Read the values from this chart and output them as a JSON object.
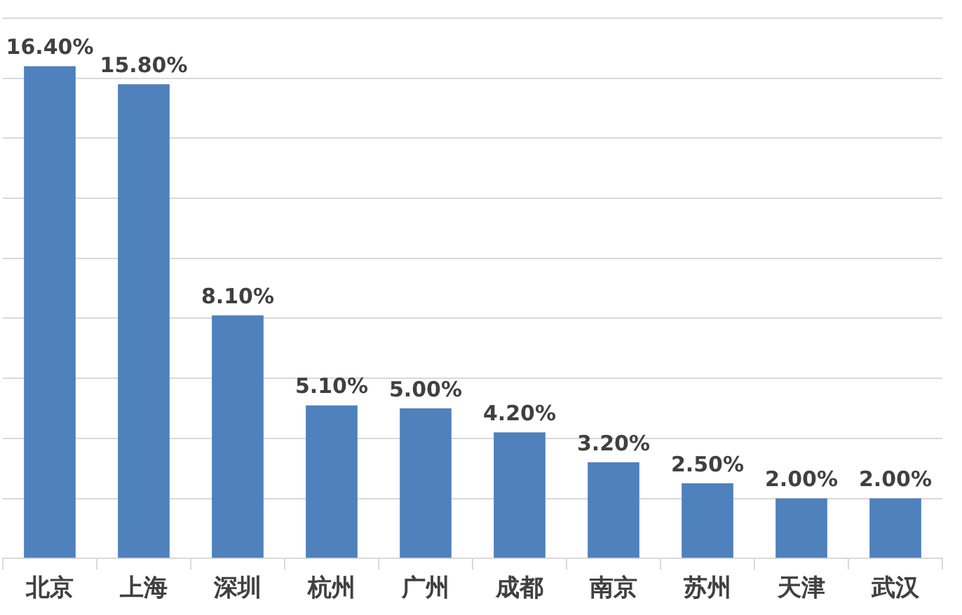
{
  "chart_data": {
    "type": "bar",
    "categories": [
      "北京",
      "上海",
      "深圳",
      "杭州",
      "广州",
      "成都",
      "南京",
      "苏州",
      "天津",
      "武汉"
    ],
    "values": [
      16.4,
      15.8,
      8.1,
      5.1,
      5.0,
      4.2,
      3.2,
      2.5,
      2.0,
      2.0
    ],
    "color": "#4f81bd",
    "value_labels": [
      "16.40%",
      "15.80%",
      "8.10%",
      "5.10%",
      "5.00%",
      "4.20%",
      "3.20%",
      "2.50%",
      "2.00%",
      "2.00%"
    ],
    "ylim": [
      0,
      18
    ],
    "yticks": [
      {
        "value": 0,
        "label": null
      },
      {
        "value": 2,
        "label": null
      },
      {
        "value": 4,
        "label": null
      },
      {
        "value": 6,
        "label": null
      },
      {
        "value": 8,
        "label": null
      },
      {
        "value": 10,
        "label": null
      },
      {
        "value": 12,
        "label": null
      },
      {
        "value": 14,
        "label": null
      },
      {
        "value": 16,
        "label": null
      },
      {
        "value": 18,
        "label": null
      }
    ],
    "grid": "y",
    "tick_labels": "x"
  }
}
